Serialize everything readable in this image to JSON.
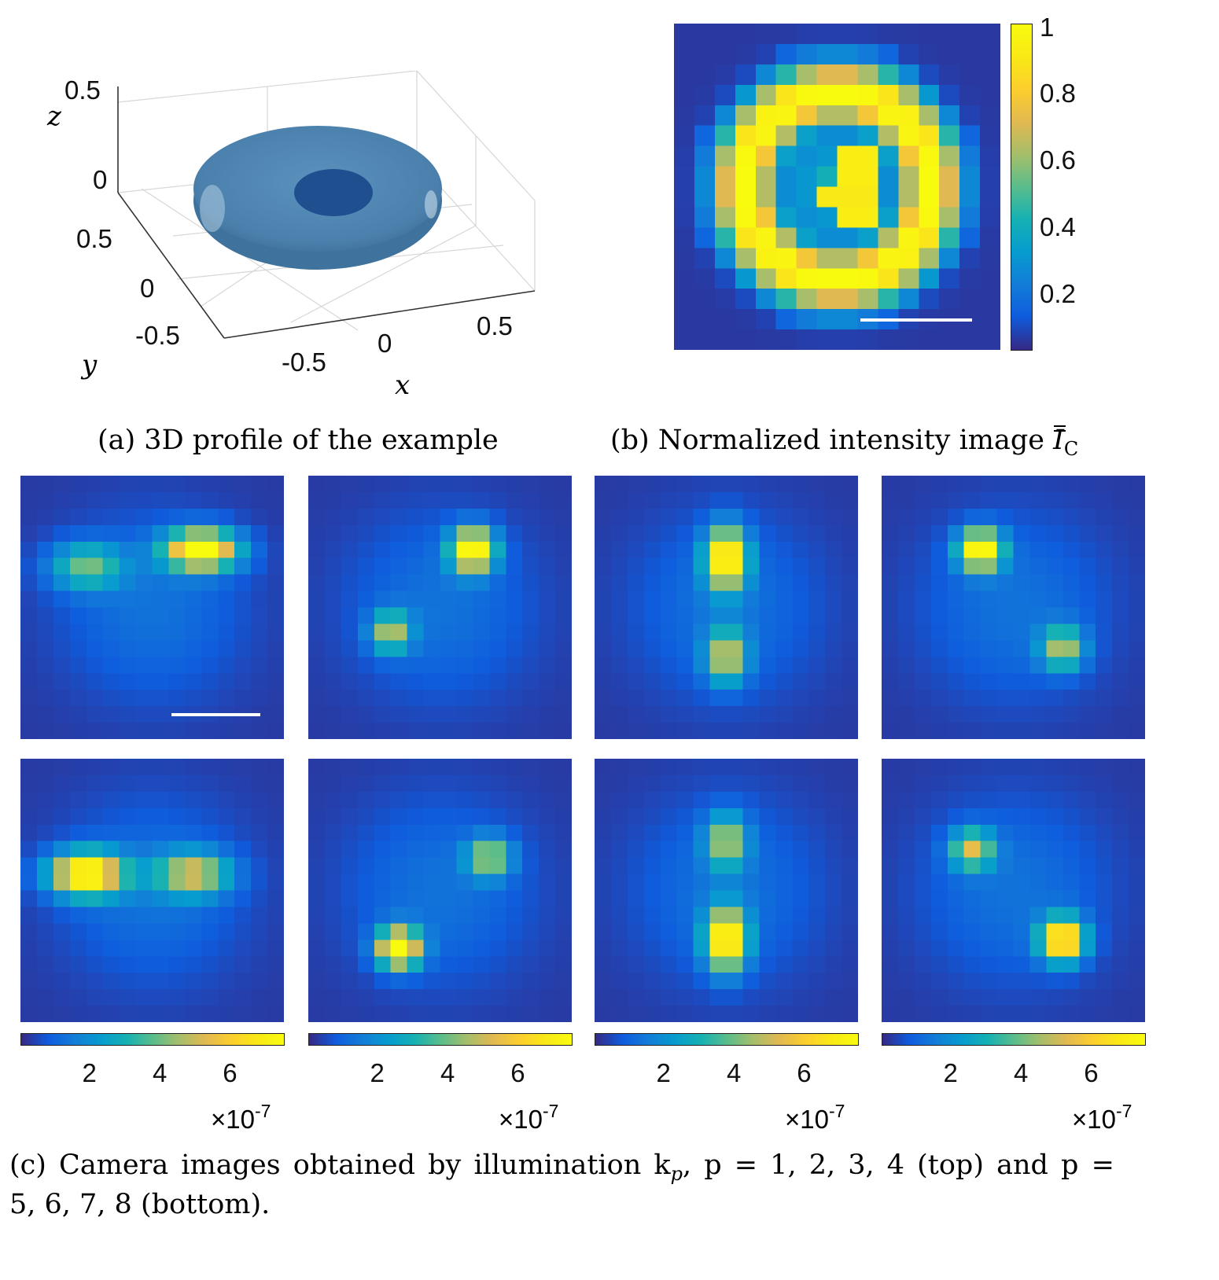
{
  "panel_a": {
    "caption": "(a) 3D profile of the example",
    "z_label": "z",
    "y_label": "y",
    "x_label": "x",
    "z_ticks": [
      "0.5",
      "0"
    ],
    "y_ticks": [
      "0.5",
      "0",
      "-0.5"
    ],
    "x_ticks": [
      "-0.5",
      "0",
      "0.5"
    ],
    "colors": {
      "surface": "#4f86b2",
      "hole": "#1f4f8f"
    }
  },
  "panel_b": {
    "caption_prefix": "(b) Normalized intensity image ",
    "caption_symbol": "I",
    "caption_sub": "C",
    "colorbar_ticks": [
      "1",
      "0.8",
      "0.6",
      "0.4",
      "0.2"
    ]
  },
  "panel_c": {
    "caption_line1": "(c) Camera images obtained by illumination k",
    "caption_sub": "p",
    "caption_line1_rest": ", p = 1, 2, 3, 4 (top) and p =",
    "caption_line2": "5, 6, 7, 8 (bottom).",
    "colorbar_ticks": [
      "2",
      "4",
      "6"
    ],
    "colorbar_exponent_base": "×10",
    "colorbar_exponent_power": "-7"
  },
  "chart_data": [
    {
      "type": "heatmap",
      "title": "",
      "grid_size": 16,
      "colorbar_range": [
        0.02,
        1
      ],
      "colorbar_ticks": [
        0.2,
        0.4,
        0.6,
        0.8,
        1
      ],
      "description_values": "ring of high intensity with spiral-like inner pattern"
    },
    {
      "type": "heatmap",
      "grid_size": 16,
      "colorbar_range": [
        0,
        7.5e-07
      ],
      "colorbar_ticks": [
        2e-07,
        4e-07,
        6e-07
      ],
      "images": [
        {
          "p": 1,
          "blobs": [
            [
              5,
              3.5,
              0.45,
              1.4,
              2.2
            ],
            [
              4,
              10.5,
              1.0,
              1.2,
              2.2
            ]
          ]
        },
        {
          "p": 2,
          "blobs": [
            [
              4,
              9.5,
              1.0,
              1.3,
              1.3
            ],
            [
              9,
              4.5,
              0.55,
              1.2,
              1.2
            ]
          ]
        },
        {
          "p": 3,
          "blobs": [
            [
              4.5,
              7.5,
              1.0,
              1.8,
              1.2
            ],
            [
              10.5,
              7.5,
              0.6,
              1.6,
              1.2
            ]
          ]
        },
        {
          "p": 4,
          "blobs": [
            [
              4,
              5.5,
              1.0,
              1.2,
              1.3
            ],
            [
              10,
              10.5,
              0.55,
              1.3,
              1.3
            ]
          ]
        },
        {
          "p": 5,
          "blobs": [
            [
              6.5,
              3.5,
              1.0,
              1.3,
              2.2
            ],
            [
              6.5,
              10,
              0.6,
              1.3,
              2.2
            ]
          ]
        },
        {
          "p": 6,
          "blobs": [
            [
              11,
              5,
              1.0,
              1.2,
              1.3
            ],
            [
              5.5,
              10.5,
              0.55,
              1.2,
              1.3
            ]
          ]
        },
        {
          "p": 7,
          "blobs": [
            [
              4.5,
              7.5,
              0.55,
              1.6,
              1.2
            ],
            [
              10.5,
              7.5,
              1.0,
              1.8,
              1.2
            ]
          ]
        },
        {
          "p": 8,
          "blobs": [
            [
              5,
              5,
              0.6,
              1.2,
              1.3
            ],
            [
              10.5,
              10.5,
              1.0,
              1.3,
              1.3
            ]
          ]
        }
      ]
    }
  ]
}
